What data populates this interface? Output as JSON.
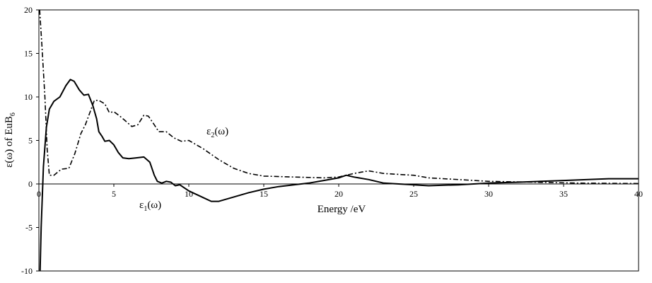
{
  "chart_data": {
    "type": "line",
    "xlabel": "Energy /eV",
    "ylabel_main": "ε(ω) of EuB",
    "ylabel_sub": "6",
    "xlim": [
      0,
      40
    ],
    "ylim": [
      -10,
      20
    ],
    "x_ticks": [
      "0",
      "5",
      "10",
      "15",
      "20",
      "25",
      "30",
      "35",
      "40"
    ],
    "y_ticks": [
      "-10",
      "-5",
      "0",
      "5",
      "10",
      "15",
      "20"
    ],
    "grid": false,
    "annotations": [
      {
        "main": "ε",
        "sub": "1",
        "tail": "(ω)",
        "series": "eps1"
      },
      {
        "main": "ε",
        "sub": "2",
        "tail": "(ω)",
        "series": "eps2"
      }
    ],
    "series": [
      {
        "id": "eps1",
        "style": "solid",
        "points": [
          [
            0.08,
            -10
          ],
          [
            0.15,
            -5
          ],
          [
            0.3,
            2
          ],
          [
            0.5,
            6.5
          ],
          [
            0.7,
            8.6
          ],
          [
            1.0,
            9.5
          ],
          [
            1.4,
            10.0
          ],
          [
            1.8,
            11.3
          ],
          [
            2.1,
            12.0
          ],
          [
            2.35,
            11.8
          ],
          [
            2.7,
            10.8
          ],
          [
            3.0,
            10.2
          ],
          [
            3.3,
            10.3
          ],
          [
            3.6,
            9.0
          ],
          [
            3.85,
            7.5
          ],
          [
            4.0,
            6.0
          ],
          [
            4.2,
            5.5
          ],
          [
            4.4,
            4.9
          ],
          [
            4.7,
            5.0
          ],
          [
            5.0,
            4.5
          ],
          [
            5.3,
            3.6
          ],
          [
            5.6,
            3.0
          ],
          [
            6.0,
            2.9
          ],
          [
            6.5,
            3.0
          ],
          [
            7.0,
            3.1
          ],
          [
            7.4,
            2.5
          ],
          [
            7.7,
            1.0
          ],
          [
            7.9,
            0.3
          ],
          [
            8.2,
            0.1
          ],
          [
            8.5,
            0.3
          ],
          [
            8.8,
            0.2
          ],
          [
            9.1,
            -0.2
          ],
          [
            9.4,
            -0.1
          ],
          [
            10,
            -0.8
          ],
          [
            11,
            -1.6
          ],
          [
            11.5,
            -2.0
          ],
          [
            12,
            -2.0
          ],
          [
            13,
            -1.5
          ],
          [
            14,
            -1.0
          ],
          [
            15,
            -0.6
          ],
          [
            16,
            -0.3
          ],
          [
            17,
            -0.1
          ],
          [
            18,
            0.1
          ],
          [
            19,
            0.4
          ],
          [
            20,
            0.7
          ],
          [
            20.5,
            1.0
          ],
          [
            21,
            0.8
          ],
          [
            22,
            0.5
          ],
          [
            23,
            0.1
          ],
          [
            24,
            0.0
          ],
          [
            25,
            -0.1
          ],
          [
            26,
            -0.2
          ],
          [
            27,
            -0.15
          ],
          [
            28,
            -0.1
          ],
          [
            30,
            0.1
          ],
          [
            32,
            0.2
          ],
          [
            35,
            0.4
          ],
          [
            38,
            0.6
          ],
          [
            40,
            0.6
          ]
        ]
      },
      {
        "id": "eps2",
        "style": "dashdot",
        "points": [
          [
            0.05,
            20
          ],
          [
            0.2,
            16
          ],
          [
            0.4,
            10
          ],
          [
            0.55,
            4
          ],
          [
            0.7,
            1.0
          ],
          [
            1.0,
            1.0
          ],
          [
            1.5,
            1.7
          ],
          [
            2.0,
            1.8
          ],
          [
            2.4,
            3.5
          ],
          [
            2.8,
            5.8
          ],
          [
            3.1,
            6.8
          ],
          [
            3.4,
            8.2
          ],
          [
            3.7,
            9.6
          ],
          [
            4.0,
            9.6
          ],
          [
            4.4,
            9.2
          ],
          [
            4.7,
            8.2
          ],
          [
            5.0,
            8.3
          ],
          [
            5.4,
            7.8
          ],
          [
            5.8,
            7.2
          ],
          [
            6.2,
            6.6
          ],
          [
            6.6,
            6.8
          ],
          [
            7.0,
            7.9
          ],
          [
            7.3,
            7.8
          ],
          [
            7.7,
            6.8
          ],
          [
            8.0,
            6.0
          ],
          [
            8.5,
            6.0
          ],
          [
            9.0,
            5.3
          ],
          [
            9.5,
            4.9
          ],
          [
            10.0,
            5.0
          ],
          [
            11.0,
            4.0
          ],
          [
            12.0,
            2.8
          ],
          [
            13.0,
            1.8
          ],
          [
            14.0,
            1.2
          ],
          [
            15.0,
            0.9
          ],
          [
            17.0,
            0.8
          ],
          [
            19.0,
            0.7
          ],
          [
            20.0,
            0.8
          ],
          [
            21.0,
            1.2
          ],
          [
            22.0,
            1.5
          ],
          [
            23.0,
            1.2
          ],
          [
            24.0,
            1.1
          ],
          [
            25.0,
            1.0
          ],
          [
            26.0,
            0.7
          ],
          [
            28.0,
            0.5
          ],
          [
            30.0,
            0.3
          ],
          [
            33.0,
            0.2
          ],
          [
            36.0,
            0.1
          ],
          [
            40.0,
            0.05
          ]
        ]
      }
    ]
  }
}
